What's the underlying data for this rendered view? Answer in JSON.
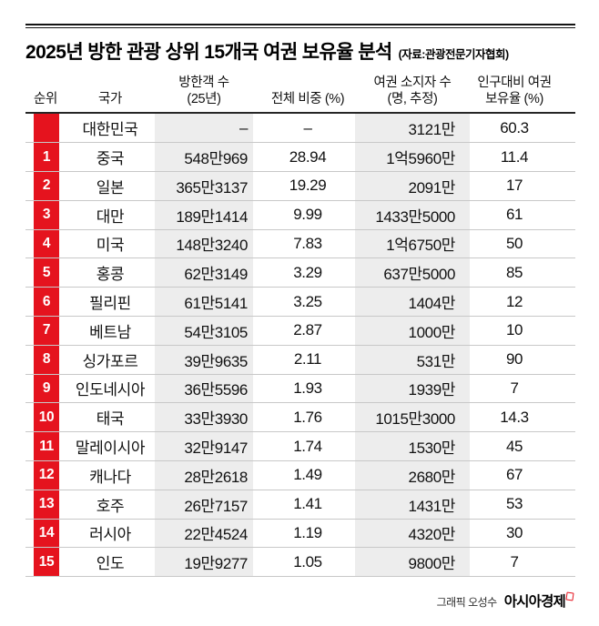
{
  "title": "2025년 방한 관광 상위 15개국 여권 보유율 분석",
  "source": "(자료:관광전문기자협회)",
  "table": {
    "headers": {
      "rank": "순위",
      "country": "국가",
      "visitors_line1": "방한객 수",
      "visitors_line2": "(25년)",
      "share": "전체 비중 (%)",
      "passport_line1": "여권 소지자 수",
      "passport_line2": "(명, 추정)",
      "rate_line1": "인구대비 여권",
      "rate_line2": "보유율 (%)"
    },
    "rows": [
      {
        "rank": "",
        "country": "대한민국",
        "visitors": "–",
        "share": "–",
        "passport": "3121만",
        "rate": "60.3"
      },
      {
        "rank": "1",
        "country": "중국",
        "visitors": "548만969",
        "share": "28.94",
        "passport": "1억5960만",
        "rate": "11.4"
      },
      {
        "rank": "2",
        "country": "일본",
        "visitors": "365만3137",
        "share": "19.29",
        "passport": "2091만",
        "rate": "17"
      },
      {
        "rank": "3",
        "country": "대만",
        "visitors": "189만1414",
        "share": "9.99",
        "passport": "1433만5000",
        "rate": "61"
      },
      {
        "rank": "4",
        "country": "미국",
        "visitors": "148만3240",
        "share": "7.83",
        "passport": "1억6750만",
        "rate": "50"
      },
      {
        "rank": "5",
        "country": "홍콩",
        "visitors": "62만3149",
        "share": "3.29",
        "passport": "637만5000",
        "rate": "85"
      },
      {
        "rank": "6",
        "country": "필리핀",
        "visitors": "61만5141",
        "share": "3.25",
        "passport": "1404만",
        "rate": "12"
      },
      {
        "rank": "7",
        "country": "베트남",
        "visitors": "54만3105",
        "share": "2.87",
        "passport": "1000만",
        "rate": "10"
      },
      {
        "rank": "8",
        "country": "싱가포르",
        "visitors": "39만9635",
        "share": "2.11",
        "passport": "531만",
        "rate": "90"
      },
      {
        "rank": "9",
        "country": "인도네시아",
        "visitors": "36만5596",
        "share": "1.93",
        "passport": "1939만",
        "rate": "7"
      },
      {
        "rank": "10",
        "country": "태국",
        "visitors": "33만3930",
        "share": "1.76",
        "passport": "1015만3000",
        "rate": "14.3"
      },
      {
        "rank": "11",
        "country": "말레이시아",
        "visitors": "32만9147",
        "share": "1.74",
        "passport": "1530만",
        "rate": "45"
      },
      {
        "rank": "12",
        "country": "캐나다",
        "visitors": "28만2618",
        "share": "1.49",
        "passport": "2680만",
        "rate": "67"
      },
      {
        "rank": "13",
        "country": "호주",
        "visitors": "26만7157",
        "share": "1.41",
        "passport": "1431만",
        "rate": "53"
      },
      {
        "rank": "14",
        "country": "러시아",
        "visitors": "22만4524",
        "share": "1.19",
        "passport": "4320만",
        "rate": "30"
      },
      {
        "rank": "15",
        "country": "인도",
        "visitors": "19만9277",
        "share": "1.05",
        "passport": "9800만",
        "rate": "7"
      }
    ]
  },
  "footer": {
    "credit": "그래픽 오성수",
    "brand": "아시아경제"
  },
  "colors": {
    "accent_red": "#e5131e",
    "column_bg": "#ededed",
    "row_border": "#c8c8c8",
    "header_border": "#262626"
  },
  "chart_data": {
    "type": "table",
    "title": "2025년 방한 관광 상위 15개국 여권 보유율 분석",
    "source": "(자료:관광전문기자협회)",
    "columns": [
      "순위",
      "국가",
      "방한객 수 (25년)",
      "전체 비중 (%)",
      "여권 소지자 수 (명, 추정)",
      "인구대비 여권 보유율 (%)"
    ],
    "rows": [
      [
        "",
        "대한민국",
        "–",
        "–",
        "3121만",
        60.3
      ],
      [
        1,
        "중국",
        "548만969",
        28.94,
        "1억5960만",
        11.4
      ],
      [
        2,
        "일본",
        "365만3137",
        19.29,
        "2091만",
        17
      ],
      [
        3,
        "대만",
        "189만1414",
        9.99,
        "1433만5000",
        61
      ],
      [
        4,
        "미국",
        "148만3240",
        7.83,
        "1억6750만",
        50
      ],
      [
        5,
        "홍콩",
        "62만3149",
        3.29,
        "637만5000",
        85
      ],
      [
        6,
        "필리핀",
        "61만5141",
        3.25,
        "1404만",
        12
      ],
      [
        7,
        "베트남",
        "54만3105",
        2.87,
        "1000만",
        10
      ],
      [
        8,
        "싱가포르",
        "39만9635",
        2.11,
        "531만",
        90
      ],
      [
        9,
        "인도네시아",
        "36만5596",
        1.93,
        "1939만",
        7
      ],
      [
        10,
        "태국",
        "33만3930",
        1.76,
        "1015만3000",
        14.3
      ],
      [
        11,
        "말레이시아",
        "32만9147",
        1.74,
        "1530만",
        45
      ],
      [
        12,
        "캐나다",
        "28만2618",
        1.49,
        "2680만",
        67
      ],
      [
        13,
        "호주",
        "26만7157",
        1.41,
        "1431만",
        53
      ],
      [
        14,
        "러시아",
        "22만4524",
        1.19,
        "4320만",
        30
      ],
      [
        15,
        "인도",
        "19만9277",
        1.05,
        "9800만",
        7
      ]
    ]
  }
}
